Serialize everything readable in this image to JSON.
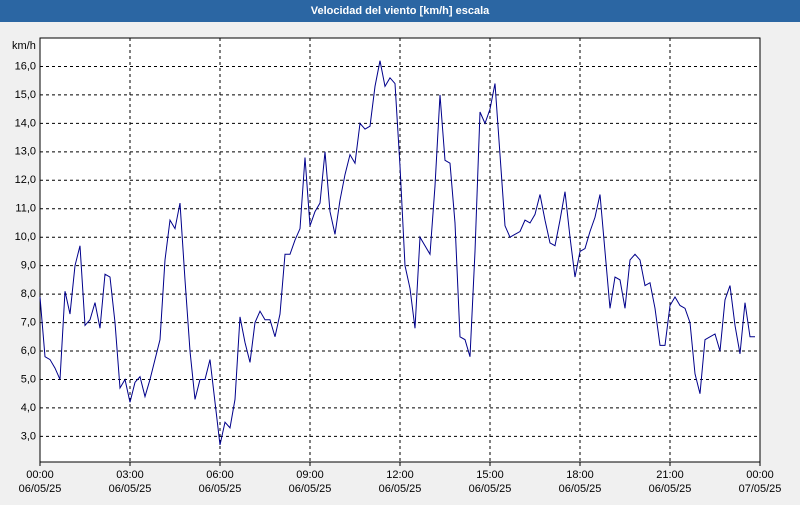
{
  "chart_data": {
    "type": "line",
    "title": "Velocidad del viento [km/h] escala",
    "y_unit": "km/h",
    "x": [
      0,
      10,
      20,
      30,
      40,
      50,
      60,
      70,
      80,
      90,
      100,
      110,
      120,
      130,
      140,
      150,
      160,
      170,
      180,
      190,
      200,
      210,
      220,
      230,
      240,
      250,
      260,
      270,
      280,
      290,
      300,
      310,
      320,
      330,
      340,
      350,
      360,
      370,
      380,
      390,
      400,
      410,
      420,
      430,
      440,
      450,
      460,
      470,
      480,
      490,
      500,
      510,
      520,
      530,
      540,
      550,
      560,
      570,
      580,
      590,
      600,
      610,
      620,
      630,
      640,
      650,
      660,
      670,
      680,
      690,
      700,
      710,
      720,
      730,
      740,
      750,
      760,
      770,
      780,
      790,
      800,
      810,
      820,
      830,
      840,
      850,
      860,
      870,
      880,
      890,
      900,
      910,
      920,
      930,
      940,
      950,
      960,
      970,
      980,
      990,
      1000,
      1010,
      1020,
      1030,
      1040,
      1050,
      1060,
      1070,
      1080,
      1090,
      1100,
      1110,
      1120,
      1130,
      1140,
      1150,
      1160,
      1170,
      1180,
      1190,
      1200,
      1210,
      1220,
      1230,
      1240,
      1250,
      1260,
      1270,
      1280,
      1290,
      1300,
      1310,
      1320,
      1330,
      1340,
      1350,
      1360,
      1370,
      1380,
      1390,
      1400,
      1410,
      1420,
      1430
    ],
    "series": [
      {
        "name": "Velocidad del viento",
        "color": "#00008b",
        "values": [
          7.9,
          5.8,
          5.7,
          5.4,
          5.0,
          8.1,
          7.3,
          9.0,
          9.7,
          6.9,
          7.1,
          7.7,
          6.8,
          8.7,
          8.6,
          7.0,
          4.7,
          5.0,
          4.2,
          4.9,
          5.1,
          4.4,
          5.0,
          5.7,
          6.4,
          9.2,
          10.6,
          10.3,
          11.2,
          8.5,
          6.0,
          4.3,
          5.0,
          5.0,
          5.7,
          4.2,
          2.7,
          3.5,
          3.3,
          4.3,
          7.2,
          6.3,
          5.6,
          7.0,
          7.4,
          7.1,
          7.1,
          6.5,
          7.3,
          9.4,
          9.4,
          9.9,
          10.3,
          12.8,
          10.4,
          10.9,
          11.2,
          13.0,
          10.9,
          10.1,
          11.3,
          12.2,
          12.9,
          12.6,
          14.0,
          13.8,
          13.9,
          15.3,
          16.2,
          15.3,
          15.6,
          15.4,
          12.5,
          9.0,
          8.2,
          6.8,
          10.0,
          9.7,
          9.4,
          11.8,
          15.0,
          12.7,
          12.6,
          10.5,
          6.5,
          6.4,
          5.8,
          9.5,
          14.4,
          14.0,
          14.5,
          15.4,
          12.9,
          10.4,
          10.0,
          10.1,
          10.2,
          10.6,
          10.5,
          10.8,
          11.5,
          10.6,
          9.8,
          9.7,
          10.6,
          11.6,
          10.0,
          8.6,
          9.5,
          9.6,
          10.2,
          10.7,
          11.5,
          9.5,
          7.5,
          8.6,
          8.5,
          7.5,
          9.2,
          9.4,
          9.2,
          8.3,
          8.4,
          7.5,
          6.2,
          6.2,
          7.6,
          7.9,
          7.6,
          7.5,
          7.0,
          5.2,
          4.5,
          6.4,
          6.5,
          6.6,
          6.0,
          7.8,
          8.3,
          6.9,
          5.9,
          7.7,
          6.5,
          6.5
        ]
      }
    ],
    "xlim": [
      0,
      1440
    ],
    "xticks": [
      {
        "value": 0,
        "label": "00:00\n06/05/25"
      },
      {
        "value": 180,
        "label": "03:00\n06/05/25"
      },
      {
        "value": 360,
        "label": "06:00\n06/05/25"
      },
      {
        "value": 540,
        "label": "09:00\n06/05/25"
      },
      {
        "value": 720,
        "label": "12:00\n06/05/25"
      },
      {
        "value": 900,
        "label": "15:00\n06/05/25"
      },
      {
        "value": 1080,
        "label": "18:00\n06/05/25"
      },
      {
        "value": 1260,
        "label": "21:00\n06/05/25"
      },
      {
        "value": 1440,
        "label": "00:00\n07/05/25"
      }
    ],
    "ylim": [
      2.1,
      17.0
    ],
    "yticks": [
      {
        "value": 3,
        "label": "3,0"
      },
      {
        "value": 4,
        "label": "4,0"
      },
      {
        "value": 5,
        "label": "5,0"
      },
      {
        "value": 6,
        "label": "6,0"
      },
      {
        "value": 7,
        "label": "7,0"
      },
      {
        "value": 8,
        "label": "8,0"
      },
      {
        "value": 9,
        "label": "9,0"
      },
      {
        "value": 10,
        "label": "10,0"
      },
      {
        "value": 11,
        "label": "11,0"
      },
      {
        "value": 12,
        "label": "12,0"
      },
      {
        "value": 13,
        "label": "13,0"
      },
      {
        "value": 14,
        "label": "14,0"
      },
      {
        "value": 15,
        "label": "15,0"
      },
      {
        "value": 16,
        "label": "16,0"
      }
    ],
    "grid": true
  }
}
